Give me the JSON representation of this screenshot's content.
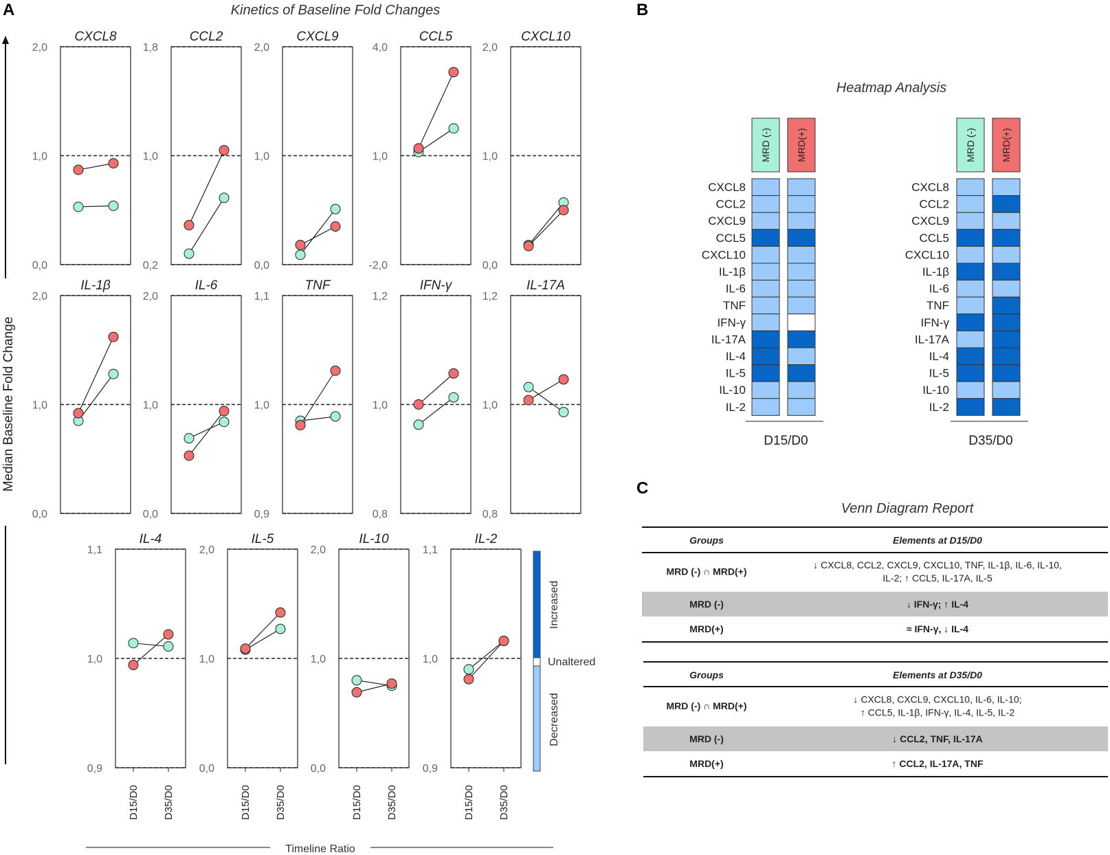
{
  "panels": {
    "a": "A",
    "b": "B",
    "c": "C"
  },
  "colors": {
    "mrd_neg": "#a8f0d8",
    "mrd_pos": "#f07070",
    "increased": "#0866c6",
    "decreased": "#9ccafa",
    "unaltered": "#ffffff"
  },
  "panel_a": {
    "title": "Kinetics of Baseline Fold Changes",
    "ylabel": "Median Baseline Fold Change",
    "xlabel": "Timeline Ratio",
    "legend": {
      "increased": "Increased",
      "unaltered": "Unaltered",
      "decreased": "Decreased"
    }
  },
  "chart_data": [
    {
      "type": "line",
      "title": "CXCL8",
      "categories": [
        "D15/D0",
        "D35/D0"
      ],
      "ylim": [
        0,
        2
      ],
      "ytick_labels": [
        "2,0",
        "1,0",
        "0,0"
      ],
      "series": [
        {
          "name": "MRD (-)",
          "values": [
            0.53,
            0.54
          ]
        },
        {
          "name": "MRD(+)",
          "values": [
            0.87,
            0.93
          ]
        }
      ]
    },
    {
      "type": "line",
      "title": "CCL2",
      "categories": [
        "D15/D0",
        "D35/D0"
      ],
      "ylim": [
        0.2,
        1.8
      ],
      "ytick_labels": [
        "1,8",
        "1,0",
        "0,2"
      ],
      "series": [
        {
          "name": "MRD (-)",
          "values": [
            0.28,
            0.69
          ]
        },
        {
          "name": "MRD(+)",
          "values": [
            0.49,
            1.04
          ]
        }
      ]
    },
    {
      "type": "line",
      "title": "CXCL9",
      "categories": [
        "D15/D0",
        "D35/D0"
      ],
      "ylim": [
        0,
        2
      ],
      "ytick_labels": [
        "2,0",
        "1,0",
        "0,0"
      ],
      "series": [
        {
          "name": "MRD (-)",
          "values": [
            0.09,
            0.51
          ]
        },
        {
          "name": "MRD(+)",
          "values": [
            0.18,
            0.35
          ]
        }
      ]
    },
    {
      "type": "line",
      "title": "CCL5",
      "categories": [
        "D15/D0",
        "D35/D0"
      ],
      "ylim": [
        -2,
        4
      ],
      "ytick_labels": [
        "4,0",
        "1,0",
        "-2,0"
      ],
      "series": [
        {
          "name": "MRD (-)",
          "values": [
            1.1,
            1.75
          ]
        },
        {
          "name": "MRD(+)",
          "values": [
            1.2,
            3.3
          ]
        }
      ]
    },
    {
      "type": "line",
      "title": "CXCL10",
      "categories": [
        "D15/D0",
        "D35/D0"
      ],
      "ylim": [
        0,
        2
      ],
      "ytick_labels": [
        "2,0",
        "1,0",
        "0,0"
      ],
      "series": [
        {
          "name": "MRD (-)",
          "values": [
            0.18,
            0.57
          ]
        },
        {
          "name": "MRD(+)",
          "values": [
            0.17,
            0.5
          ]
        }
      ]
    },
    {
      "type": "line",
      "title": "IL-1β",
      "categories": [
        "D15/D0",
        "D35/D0"
      ],
      "ylim": [
        0,
        2
      ],
      "ytick_labels": [
        "2,0",
        "1,0",
        "0,0"
      ],
      "series": [
        {
          "name": "MRD (-)",
          "values": [
            0.85,
            1.28
          ]
        },
        {
          "name": "MRD(+)",
          "values": [
            0.92,
            1.62
          ]
        }
      ]
    },
    {
      "type": "line",
      "title": "IL-6",
      "categories": [
        "D15/D0",
        "D35/D0"
      ],
      "ylim": [
        0,
        2
      ],
      "ytick_labels": [
        "2,0",
        "1,0",
        "0,0"
      ],
      "series": [
        {
          "name": "MRD (-)",
          "values": [
            0.69,
            0.84
          ]
        },
        {
          "name": "MRD(+)",
          "values": [
            0.53,
            0.94
          ]
        }
      ]
    },
    {
      "type": "line",
      "title": "TNF",
      "categories": [
        "D15/D0",
        "D35/D0"
      ],
      "ylim": [
        0.9,
        1.1
      ],
      "ytick_labels": [
        "1,1",
        "1,0",
        "0,9"
      ],
      "series": [
        {
          "name": "MRD (-)",
          "values": [
            0.985,
            0.989
          ]
        },
        {
          "name": "MRD(+)",
          "values": [
            0.981,
            1.031
          ]
        }
      ]
    },
    {
      "type": "line",
      "title": "IFN-γ",
      "categories": [
        "D15/D0",
        "D35/D0"
      ],
      "ylim": [
        0.8,
        1.2
      ],
      "ytick_labels": [
        "1,2",
        "1,0",
        "0,8"
      ],
      "series": [
        {
          "name": "MRD (-)",
          "values": [
            0.963,
            1.013
          ]
        },
        {
          "name": "MRD(+)",
          "values": [
            1.0,
            1.057
          ]
        }
      ]
    },
    {
      "type": "line",
      "title": "IL-17A",
      "categories": [
        "D15/D0",
        "D35/D0"
      ],
      "ylim": [
        0.8,
        1.2
      ],
      "ytick_labels": [
        "1,2",
        "1,0",
        "0,8"
      ],
      "series": [
        {
          "name": "MRD (-)",
          "values": [
            1.032,
            0.986
          ]
        },
        {
          "name": "MRD(+)",
          "values": [
            1.008,
            1.046
          ]
        }
      ]
    },
    {
      "type": "line",
      "title": "IL-4",
      "categories": [
        "D15/D0",
        "D35/D0"
      ],
      "ylim": [
        0.9,
        1.1
      ],
      "ytick_labels": [
        "1,1",
        "1,0",
        "0,9"
      ],
      "series": [
        {
          "name": "MRD (-)",
          "values": [
            1.014,
            1.011
          ]
        },
        {
          "name": "MRD(+)",
          "values": [
            0.994,
            1.022
          ]
        }
      ]
    },
    {
      "type": "line",
      "title": "IL-5",
      "categories": [
        "D15/D0",
        "D35/D0"
      ],
      "ylim": [
        0,
        2
      ],
      "ytick_labels": [
        "2,0",
        "1,0",
        "0,0"
      ],
      "series": [
        {
          "name": "MRD (-)",
          "values": [
            1.08,
            1.27
          ]
        },
        {
          "name": "MRD(+)",
          "values": [
            1.09,
            1.42
          ]
        }
      ]
    },
    {
      "type": "line",
      "title": "IL-10",
      "categories": [
        "D15/D0",
        "D35/D0"
      ],
      "ylim": [
        0,
        2
      ],
      "ytick_labels": [
        "2,0",
        "1,0",
        "0,0"
      ],
      "series": [
        {
          "name": "MRD (-)",
          "values": [
            0.8,
            0.75
          ]
        },
        {
          "name": "MRD(+)",
          "values": [
            0.69,
            0.77
          ]
        }
      ]
    },
    {
      "type": "line",
      "title": "IL-2",
      "categories": [
        "D15/D0",
        "D35/D0"
      ],
      "ylim": [
        0.9,
        1.1
      ],
      "ytick_labels": [
        "1,1",
        "1,0",
        "0,9"
      ],
      "series": [
        {
          "name": "MRD (-)",
          "values": [
            0.99,
            1.016
          ]
        },
        {
          "name": "MRD(+)",
          "values": [
            0.981,
            1.016
          ]
        }
      ]
    },
    {
      "type": "heatmap",
      "title": "Heatmap Analysis",
      "rows": [
        "CXCL8",
        "CCL2",
        "CXCL9",
        "CCL5",
        "CXCL10",
        "IL-1β",
        "IL-6",
        "TNF",
        "IFN-γ",
        "IL-17A",
        "IL-4",
        "IL-5",
        "IL-10",
        "IL-2"
      ],
      "column_labels": [
        "MRD (-)",
        "MRD(+)"
      ],
      "value_legend": {
        "1": "Increased",
        "0": "Unaltered",
        "-1": "Decreased"
      },
      "groups": [
        {
          "label": "D15/D0",
          "MRD (-)": [
            -1,
            -1,
            -1,
            1,
            -1,
            -1,
            -1,
            -1,
            -1,
            1,
            1,
            1,
            -1,
            -1
          ],
          "MRD(+)": [
            -1,
            -1,
            -1,
            1,
            -1,
            -1,
            -1,
            -1,
            0,
            1,
            -1,
            1,
            -1,
            -1
          ]
        },
        {
          "label": "D35/D0",
          "MRD (-)": [
            -1,
            -1,
            -1,
            1,
            -1,
            1,
            -1,
            -1,
            1,
            -1,
            1,
            1,
            -1,
            1
          ],
          "MRD(+)": [
            -1,
            1,
            -1,
            1,
            -1,
            1,
            -1,
            1,
            1,
            1,
            1,
            1,
            -1,
            1
          ]
        }
      ]
    }
  ],
  "panel_c": {
    "title": "Venn Diagram Report",
    "tables": [
      {
        "header": {
          "groups": "Groups",
          "elements": "Elements at D15/D0"
        },
        "rows": [
          {
            "group": "MRD (-) ∩ MRD(+)",
            "lines": [
              "↓ CXCL8, CCL2, CXCL9, CXCL10, TNF, IL-1β, IL-6, IL-10,",
              "IL-2; ↑ CCL5, IL-17A, IL-5"
            ],
            "shaded": false,
            "bold": false
          },
          {
            "group": "MRD (-)",
            "lines": [
              "↓ IFN-γ; ↑ IL-4"
            ],
            "shaded": true,
            "bold": true
          },
          {
            "group": "MRD(+)",
            "lines": [
              "≈ IFN-γ, ↓ IL-4"
            ],
            "shaded": false,
            "bold": true
          }
        ]
      },
      {
        "header": {
          "groups": "Groups",
          "elements": "Elements at D35/D0"
        },
        "rows": [
          {
            "group": "MRD (-) ∩ MRD(+)",
            "lines": [
              "↓ CXCL8, CXCL9, CXCL10, IL-6, IL-10;",
              "↑ CCL5, IL-1β, IFN-γ, IL-4, IL-5, IL-2"
            ],
            "shaded": false,
            "bold": false
          },
          {
            "group": "MRD (-)",
            "lines": [
              "↓ CCL2, TNF, IL-17A"
            ],
            "shaded": true,
            "bold": true
          },
          {
            "group": "MRD(+)",
            "lines": [
              "↑ CCL2, IL-17A, TNF"
            ],
            "shaded": false,
            "bold": true
          }
        ]
      }
    ]
  }
}
